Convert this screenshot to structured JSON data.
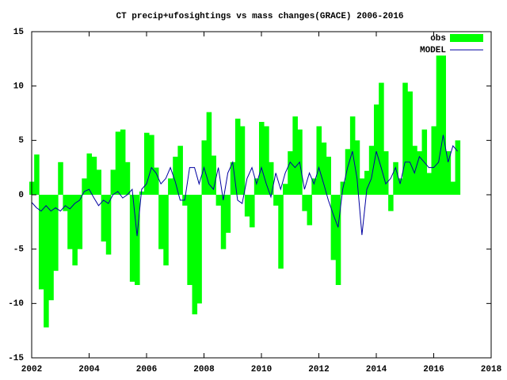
{
  "chart_data": {
    "type": "bar_line",
    "title": "CT precip+ufosightings vs mass changes(GRACE) 2006-2016",
    "x": [
      2002,
      2002.17,
      2002.33,
      2002.5,
      2002.67,
      2002.83,
      2003,
      2003.17,
      2003.33,
      2003.5,
      2003.67,
      2003.83,
      2004,
      2004.17,
      2004.33,
      2004.5,
      2004.67,
      2004.83,
      2005,
      2005.17,
      2005.33,
      2005.5,
      2005.67,
      2005.83,
      2006,
      2006.17,
      2006.33,
      2006.5,
      2006.67,
      2006.83,
      2007,
      2007.17,
      2007.33,
      2007.5,
      2007.67,
      2007.83,
      2008,
      2008.17,
      2008.33,
      2008.5,
      2008.67,
      2008.83,
      2009,
      2009.17,
      2009.33,
      2009.5,
      2009.67,
      2009.83,
      2010,
      2010.17,
      2010.33,
      2010.5,
      2010.67,
      2010.83,
      2011,
      2011.17,
      2011.33,
      2011.5,
      2011.67,
      2011.83,
      2012,
      2012.17,
      2012.33,
      2012.5,
      2012.67,
      2012.83,
      2013,
      2013.17,
      2013.33,
      2013.5,
      2013.67,
      2013.83,
      2014,
      2014.17,
      2014.33,
      2014.5,
      2014.67,
      2014.83,
      2015,
      2015.17,
      2015.33,
      2015.5,
      2015.67,
      2015.83,
      2016,
      2016.17,
      2016.33,
      2016.5,
      2016.67,
      2016.83
    ],
    "series": [
      {
        "name": "obs",
        "color": "#00ff00",
        "style": "boxes",
        "values": [
          1.2,
          3.7,
          -8.7,
          -12.2,
          -9.7,
          -7,
          3,
          -1.5,
          -5,
          -6.5,
          -5,
          1.5,
          3.8,
          3.5,
          2.3,
          -4.3,
          -5.5,
          2.3,
          5.8,
          6,
          3,
          -8,
          -8.3,
          0.3,
          5.7,
          5.5,
          2.5,
          -5,
          -6.5,
          1.5,
          3.5,
          4.5,
          -1,
          -8.3,
          -11,
          -10,
          5,
          7.6,
          3.6,
          -1,
          -5,
          -3.5,
          3,
          7,
          6.3,
          -2,
          -3,
          1.5,
          6.7,
          6.3,
          3,
          -1,
          -6.8,
          1,
          4,
          7.2,
          6,
          -1.5,
          -2.8,
          1.5,
          6.3,
          4.8,
          3.5,
          -6,
          -8.3,
          1.2,
          4.2,
          7.2,
          5,
          1.5,
          2.2,
          4.5,
          8.3,
          10.3,
          4,
          -1.5,
          3,
          1.5,
          10.3,
          9.5,
          4.5,
          4,
          6,
          2,
          6.3,
          12.8,
          12.8,
          4,
          1.2,
          5
        ]
      },
      {
        "name": "MODEL",
        "color": "#0000a0",
        "style": "line",
        "values": [
          -0.7,
          -1.2,
          -1.5,
          -1,
          -1.5,
          -1.2,
          -1.5,
          -1,
          -1.3,
          -0.8,
          -0.5,
          0.3,
          0.5,
          -0.3,
          -1,
          -0.5,
          -0.8,
          0,
          0.3,
          -0.3,
          0,
          0.5,
          -3.8,
          0.5,
          1,
          2.5,
          2,
          1,
          1.5,
          2.5,
          1.2,
          -0.5,
          -0.5,
          2.5,
          2.5,
          1,
          2.5,
          1,
          0.5,
          2.5,
          -0.5,
          2,
          3,
          -0.5,
          -0.8,
          1.5,
          2.5,
          1,
          2.5,
          1,
          -0.2,
          2,
          0.5,
          2,
          3,
          2.5,
          3,
          0.5,
          2,
          1,
          2.5,
          1,
          -0.5,
          -1.8,
          -3,
          0.5,
          2.5,
          4,
          1.5,
          -3.7,
          0.5,
          1.5,
          4,
          2.5,
          1,
          1.5,
          2.5,
          1,
          3,
          3,
          2,
          3.5,
          3,
          2.5,
          2.5,
          3,
          5.5,
          3,
          4.5,
          4
        ]
      }
    ],
    "xlim": [
      2002,
      2018
    ],
    "xticks": [
      2002,
      2004,
      2006,
      2008,
      2010,
      2012,
      2014,
      2016,
      2018
    ],
    "ylim": [
      -15,
      15
    ],
    "yticks": [
      -15,
      -10,
      -5,
      0,
      5,
      10,
      15
    ],
    "legend": "top-right"
  }
}
